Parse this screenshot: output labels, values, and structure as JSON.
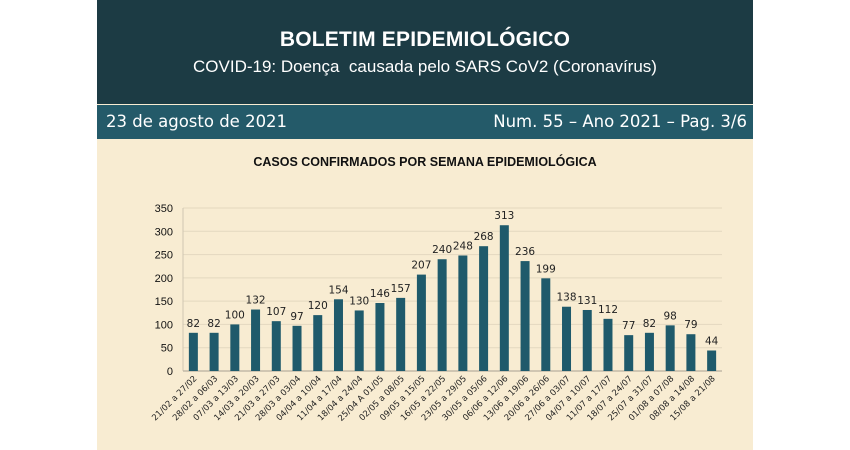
{
  "header": {
    "title": "BOLETIM EPIDEMIOLÓGICO",
    "subtitle": "COVID-19: Doença  causada pelo SARS CoV2 (Coronavírus)",
    "date": "23 de agosto de 2021",
    "issue": "Num. 55 – Ano 2021 – Pag. 3/6"
  },
  "colors": {
    "banner": "#1c3b44",
    "strip": "#245a69",
    "bar": "#1f5a6b",
    "background": "#f8ecd2"
  },
  "chart_data": {
    "type": "bar",
    "title": "CASOS CONFIRMADOS POR SEMANA EPIDEMIOLÓGICA",
    "xlabel": "",
    "ylabel": "",
    "ylim": [
      0,
      350
    ],
    "yticks": [
      0,
      50,
      100,
      150,
      200,
      250,
      300,
      350
    ],
    "grid": true,
    "legend": "none",
    "categories": [
      "21/02 a 27/02",
      "28/02 a 06/03",
      "07/03 a 13/03",
      "14/03 a 20/03",
      "21/03 a 27/03",
      "28/03 a 03/04",
      "04/04 a 10/04",
      "11/04 a 17/04",
      "18/04 a 24/04",
      "25/04 A 01/05",
      "02/05 a 08/05",
      "09/05 a 15/05",
      "16/05 a 22/05",
      "23/05 a 29/05",
      "30/05 a 05/06",
      "06/06 a 12/06",
      "13/06 a 19/06",
      "20/06 a 26/06",
      "27/06 a 03/07",
      "04/07 a 10/07",
      "11/07 a 17/07",
      "18/07 a 24/07",
      "25/07 a 31/07",
      "01/08 a 07/08",
      "08/08 a 14/08",
      "15/08 a 21/08"
    ],
    "values": [
      82,
      82,
      100,
      132,
      107,
      97,
      120,
      154,
      130,
      146,
      157,
      207,
      240,
      248,
      268,
      313,
      236,
      199,
      138,
      131,
      112,
      77,
      82,
      98,
      79,
      44
    ]
  }
}
